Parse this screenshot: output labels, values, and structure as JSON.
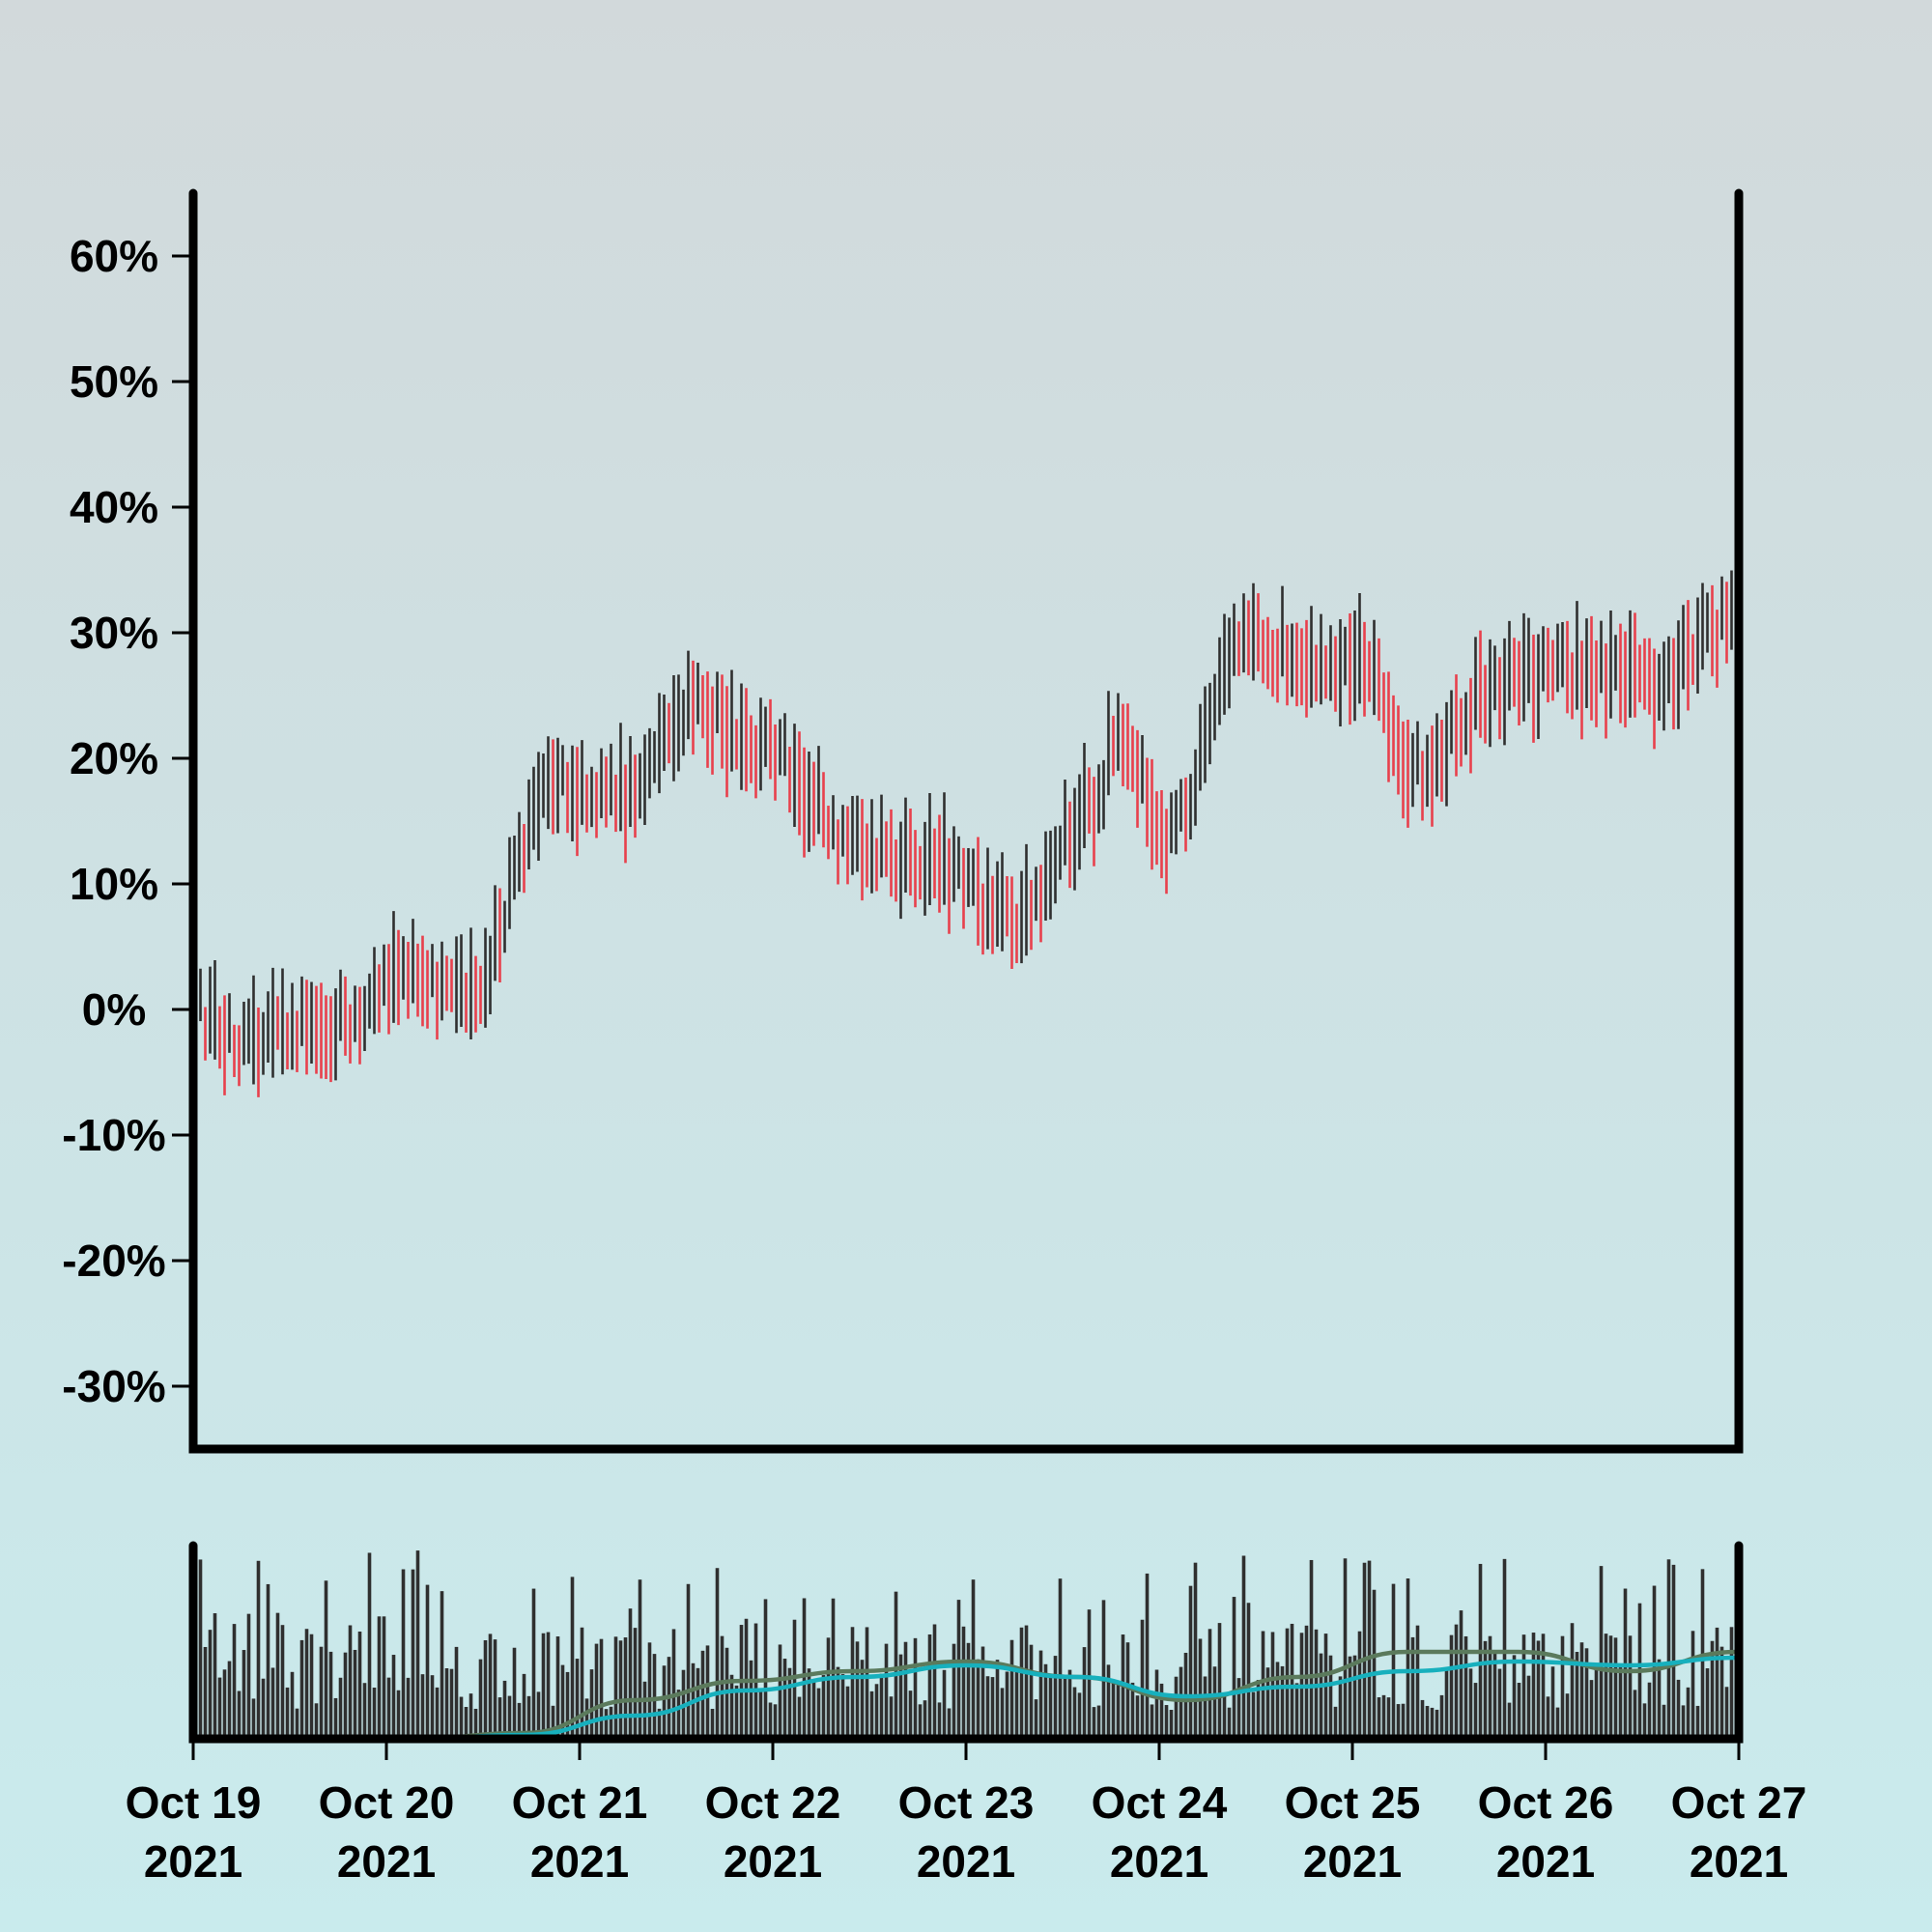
{
  "chart_data": [
    {
      "type": "ohlc",
      "panel": "price",
      "x_range": [
        "2021-10-19",
        "2021-10-27"
      ],
      "ylim": [
        -0.35,
        0.65
      ],
      "yticks": [
        0.6,
        0.5,
        0.4,
        0.3,
        0.2,
        0.1,
        0,
        -0.1,
        -0.2,
        -0.3
      ],
      "ytick_labels": [
        "60%",
        "50%",
        "40%",
        "30%",
        "20%",
        "10%",
        "0%",
        "-10%",
        "-20%",
        "-30%"
      ],
      "up_color": "#2f2f2f",
      "down_color": "#e8404c",
      "bars_per_day": 40,
      "trend_anchors": [
        {
          "day": 0.0,
          "value": 0.0
        },
        {
          "day": 0.25,
          "value": -0.03
        },
        {
          "day": 0.75,
          "value": -0.01
        },
        {
          "day": 1.15,
          "value": 0.03
        },
        {
          "day": 1.4,
          "value": 0.01
        },
        {
          "day": 1.9,
          "value": 0.18
        },
        {
          "day": 2.25,
          "value": 0.17
        },
        {
          "day": 2.6,
          "value": 0.24
        },
        {
          "day": 2.95,
          "value": 0.21
        },
        {
          "day": 3.45,
          "value": 0.13
        },
        {
          "day": 3.8,
          "value": 0.12
        },
        {
          "day": 4.25,
          "value": 0.07
        },
        {
          "day": 4.65,
          "value": 0.16
        },
        {
          "day": 4.8,
          "value": 0.22
        },
        {
          "day": 5.05,
          "value": 0.14
        },
        {
          "day": 5.45,
          "value": 0.29
        },
        {
          "day": 6.0,
          "value": 0.28
        },
        {
          "day": 6.35,
          "value": 0.19
        },
        {
          "day": 6.75,
          "value": 0.26
        },
        {
          "day": 7.1,
          "value": 0.27
        },
        {
          "day": 7.55,
          "value": 0.26
        },
        {
          "day": 8.0,
          "value": 0.31
        }
      ]
    },
    {
      "type": "bar+line",
      "panel": "volume",
      "bar_color": "#2f2f2f",
      "series": [
        {
          "color": "#5b7a5c",
          "values": [
            0.01,
            0.01,
            0.0,
            0.03,
            0.2,
            0.3,
            0.35,
            0.4,
            0.32,
            0.2,
            0.32,
            0.45,
            0.45,
            0.35,
            0.45
          ]
        },
        {
          "color": "#17b0bd",
          "values": [
            0.0,
            0.0,
            0.0,
            0.02,
            0.12,
            0.25,
            0.32,
            0.38,
            0.32,
            0.22,
            0.27,
            0.35,
            0.4,
            0.38,
            0.42
          ]
        }
      ]
    }
  ],
  "xaxis": {
    "ticks": [
      {
        "line1": "Oct 19",
        "line2": "2021"
      },
      {
        "line1": "Oct 20",
        "line2": "2021"
      },
      {
        "line1": "Oct 21",
        "line2": "2021"
      },
      {
        "line1": "Oct 22",
        "line2": "2021"
      },
      {
        "line1": "Oct 23",
        "line2": "2021"
      },
      {
        "line1": "Oct 24",
        "line2": "2021"
      },
      {
        "line1": "Oct 25",
        "line2": "2021"
      },
      {
        "line1": "Oct 26",
        "line2": "2021"
      },
      {
        "line1": "Oct 27",
        "line2": "2021"
      }
    ]
  }
}
